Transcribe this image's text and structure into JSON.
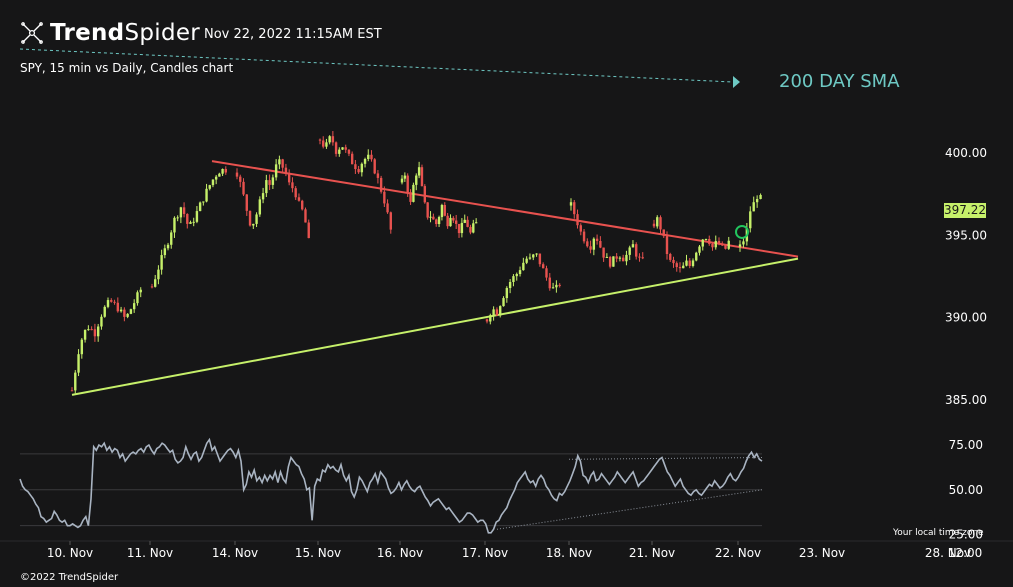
{
  "header": {
    "logo_bold": "Trend",
    "logo_light": "Spider",
    "timestamp": "Nov 22, 2022 11:15AM EST",
    "subtitle": "SPY, 15 min vs Daily, Candles chart",
    "copyright": "©2022 TrendSpider",
    "timezone_note": "Your local time zone"
  },
  "colors": {
    "background": "#161617",
    "bull_candle": "#c6f06a",
    "bear_candle": "#e8524f",
    "resistance_line": "#e8524f",
    "support_line": "#c6f06a",
    "sma_line": "#6ec9c4",
    "rsi_line": "#a9b4c2",
    "breakout_marker": "#22c55e"
  },
  "chart_data": [
    {
      "type": "candlestick",
      "title": "SPY, 15 min vs Daily, Candles chart",
      "x_tick_labels": [
        "10. Nov",
        "11. Nov",
        "14. Nov",
        "15. Nov",
        "16. Nov",
        "17. Nov",
        "18. Nov",
        "21. Nov",
        "22. Nov",
        "23. Nov",
        "28. Nov",
        "12:00"
      ],
      "y_tick_labels": [
        "400.00",
        "395.00",
        "390.00",
        "385.00"
      ],
      "ylim": [
        383.8,
        403.2
      ],
      "last_price": "397.22",
      "annotations": {
        "sma_label": "200 DAY SMA",
        "resistance": {
          "from": [
            "10. Nov",
            400.9
          ],
          "to": [
            "22. Nov",
            394.3
          ]
        },
        "support": {
          "from": [
            "10. Nov",
            385.3
          ],
          "to": [
            "22. Nov",
            392.9
          ]
        },
        "breakout": {
          "x": "22. Nov",
          "y": 395.2
        }
      },
      "sessions": [
        {
          "day": "10. Nov",
          "path": [
            385.6,
            388.4,
            389.5,
            389.1,
            390.4,
            391.0,
            390.6,
            389.9,
            390.8,
            391.7
          ]
        },
        {
          "day": "11. Nov",
          "path": [
            391.9,
            393.2,
            394.4,
            395.9,
            396.8,
            395.4,
            396.3,
            397.3,
            398.2,
            398.9,
            399.0
          ]
        },
        {
          "day": "14. Nov",
          "path": [
            398.8,
            397.8,
            396.6,
            395.5,
            396.2,
            397.2,
            398.4,
            398.0,
            399.1,
            399.4,
            398.9,
            398.0,
            397.8,
            396.8,
            396.3,
            394.6
          ]
        },
        {
          "day": "15. Nov",
          "path": [
            400.8,
            400.3,
            401.0,
            400.1,
            400.5,
            399.9,
            399.4,
            399.0,
            399.6,
            399.7,
            399.0,
            398.0,
            396.9,
            395.3
          ]
        },
        {
          "day": "16. Nov",
          "path": [
            398.2,
            398.7,
            397.8,
            396.9,
            398.0,
            398.8,
            399.0,
            397.8,
            396.8,
            396.2,
            396.2,
            395.9,
            395.7,
            396.2,
            396.8,
            396.1,
            395.8,
            396.3,
            396.1,
            395.6,
            395.3,
            395.5,
            395.9,
            395.6,
            395.1,
            395.5,
            395.7
          ]
        },
        {
          "day": "17. Nov",
          "path": [
            389.9,
            390.6,
            390.3,
            391.1,
            391.8,
            392.3,
            392.6,
            393.1,
            393.6,
            393.5,
            393.9,
            393.3,
            392.6,
            392.0,
            391.6,
            392.1
          ]
        },
        {
          "day": "18. Nov",
          "path": [
            396.8,
            396.1,
            395.2,
            394.7,
            394.3,
            395.1,
            394.4,
            393.7,
            393.3,
            393.5,
            393.9,
            393.6,
            393.9,
            394.4,
            393.6,
            393.4
          ]
        },
        {
          "day": "21. Nov",
          "path": [
            395.7,
            396.0,
            395.2,
            394.2,
            393.4,
            393.2,
            393.0,
            392.8,
            393.4,
            393.1,
            393.7,
            394.2,
            394.7,
            395.0,
            394.7,
            394.2,
            394.6,
            394.3,
            394.1,
            394.6
          ]
        },
        {
          "day": "22. Nov",
          "path": [
            394.3,
            394.7,
            395.3,
            396.5,
            396.9,
            397.4,
            397.2
          ]
        }
      ]
    },
    {
      "type": "line",
      "title": "",
      "x_tick_labels": [
        "10. Nov",
        "11. Nov",
        "14. Nov",
        "15. Nov",
        "16. Nov",
        "17. Nov",
        "18. Nov",
        "21. Nov",
        "22. Nov",
        "23. Nov",
        "28. Nov",
        "12:00"
      ],
      "y_tick_labels": [
        "75.00",
        "50.00",
        "25.00"
      ],
      "ylim": [
        22,
        80
      ],
      "reference_levels": [
        70,
        50,
        30
      ],
      "series": [
        {
          "values": [
            56,
            52,
            50,
            49,
            47,
            45,
            42,
            40,
            35,
            34,
            32,
            33,
            34,
            38,
            36,
            33,
            32,
            33,
            30,
            30,
            31,
            30,
            29,
            30,
            33,
            35,
            30,
            45,
            74,
            72,
            75,
            74,
            76,
            72,
            74,
            71,
            73,
            72,
            68,
            70,
            66,
            68,
            70,
            71,
            70,
            72,
            73,
            71,
            74,
            75,
            72,
            70,
            73,
            74,
            76,
            75,
            73,
            71,
            72,
            67,
            65,
            66,
            68,
            74,
            70,
            67,
            70,
            71,
            66,
            68,
            72,
            76,
            78,
            72,
            74,
            70,
            66,
            68,
            70,
            72,
            73,
            71,
            68,
            72,
            66,
            50,
            53,
            60,
            57,
            61,
            55,
            57,
            54,
            58,
            55,
            58,
            56,
            60,
            54,
            60,
            56,
            54,
            63,
            68,
            66,
            64,
            63,
            59,
            56,
            50,
            51,
            33,
            52,
            56,
            55,
            61,
            60,
            64,
            62,
            63,
            61,
            60,
            64,
            58,
            55,
            58,
            49,
            46,
            50,
            57,
            55,
            52,
            49,
            54,
            56,
            59,
            54,
            60,
            58,
            56,
            51,
            48,
            49,
            51,
            54,
            50,
            53,
            55,
            52,
            50,
            49,
            51,
            52,
            49,
            46,
            44,
            41,
            43,
            44,
            45,
            43,
            41,
            39,
            40,
            38,
            36,
            34,
            32,
            33,
            35,
            37,
            37,
            36,
            34,
            32,
            33,
            33,
            31,
            26,
            26,
            28,
            32,
            33,
            36,
            38,
            40,
            44,
            47,
            50,
            54,
            56,
            58,
            60,
            56,
            54,
            55,
            52,
            56,
            58,
            56,
            52,
            50,
            47,
            45,
            44,
            48,
            47,
            49,
            52,
            55,
            59,
            63,
            69,
            66,
            58,
            57,
            54,
            58,
            60,
            55,
            56,
            59,
            57,
            55,
            53,
            55,
            57,
            60,
            58,
            56,
            54,
            56,
            58,
            60,
            56,
            52,
            54,
            55,
            57,
            59,
            61,
            63,
            65,
            67,
            68,
            64,
            60,
            58,
            55,
            52,
            54,
            56,
            52,
            50,
            48,
            47,
            49,
            50,
            48,
            47,
            49,
            51,
            53,
            52,
            55,
            53,
            51,
            52,
            54,
            57,
            59,
            56,
            55,
            57,
            60,
            62,
            66,
            69,
            71,
            68,
            70,
            67,
            66
          ]
        }
      ],
      "annotations": {
        "resistance_dotted": {
          "from": [
            "18. Nov",
            67
          ],
          "to": [
            "22. Nov",
            68
          ]
        },
        "support_dotted": {
          "from": [
            "17. Nov",
            28
          ],
          "to": [
            "22. Nov",
            50
          ]
        }
      }
    }
  ]
}
